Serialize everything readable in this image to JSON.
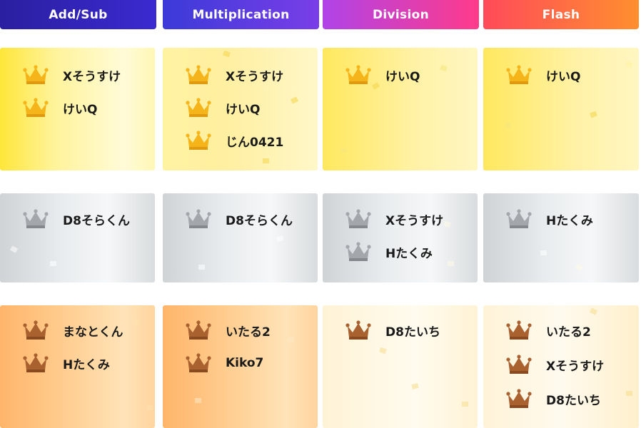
{
  "tabs": [
    {
      "label": "Add/Sub"
    },
    {
      "label": "Multiplication"
    },
    {
      "label": "Division"
    },
    {
      "label": "Flash"
    }
  ],
  "colors": {
    "gold_crown": "#f2b21c",
    "silver_crown": "#9a9ea3",
    "bronze_crown": "#a85a2c"
  },
  "ranks": {
    "gold": {
      "icon": "gold-crown-icon",
      "columns": [
        [
          "Xそうすけ",
          "けいQ"
        ],
        [
          "Xそうすけ",
          "けいQ",
          "じん0421"
        ],
        [
          "けいQ"
        ],
        [
          "けいQ"
        ]
      ]
    },
    "silver": {
      "icon": "silver-crown-icon",
      "columns": [
        [
          "D8そらくん"
        ],
        [
          "D8そらくん"
        ],
        [
          "Xそうすけ",
          "Hたくみ"
        ],
        [
          "Hたくみ"
        ]
      ]
    },
    "bronze": {
      "icon": "bronze-crown-icon",
      "columns": [
        [
          "まなとくん",
          "Hたくみ"
        ],
        [
          "いたる2",
          "Kiko7"
        ],
        [
          "D8たいち"
        ],
        [
          "いたる2",
          "Xそうすけ",
          "D8たいち"
        ]
      ]
    }
  }
}
